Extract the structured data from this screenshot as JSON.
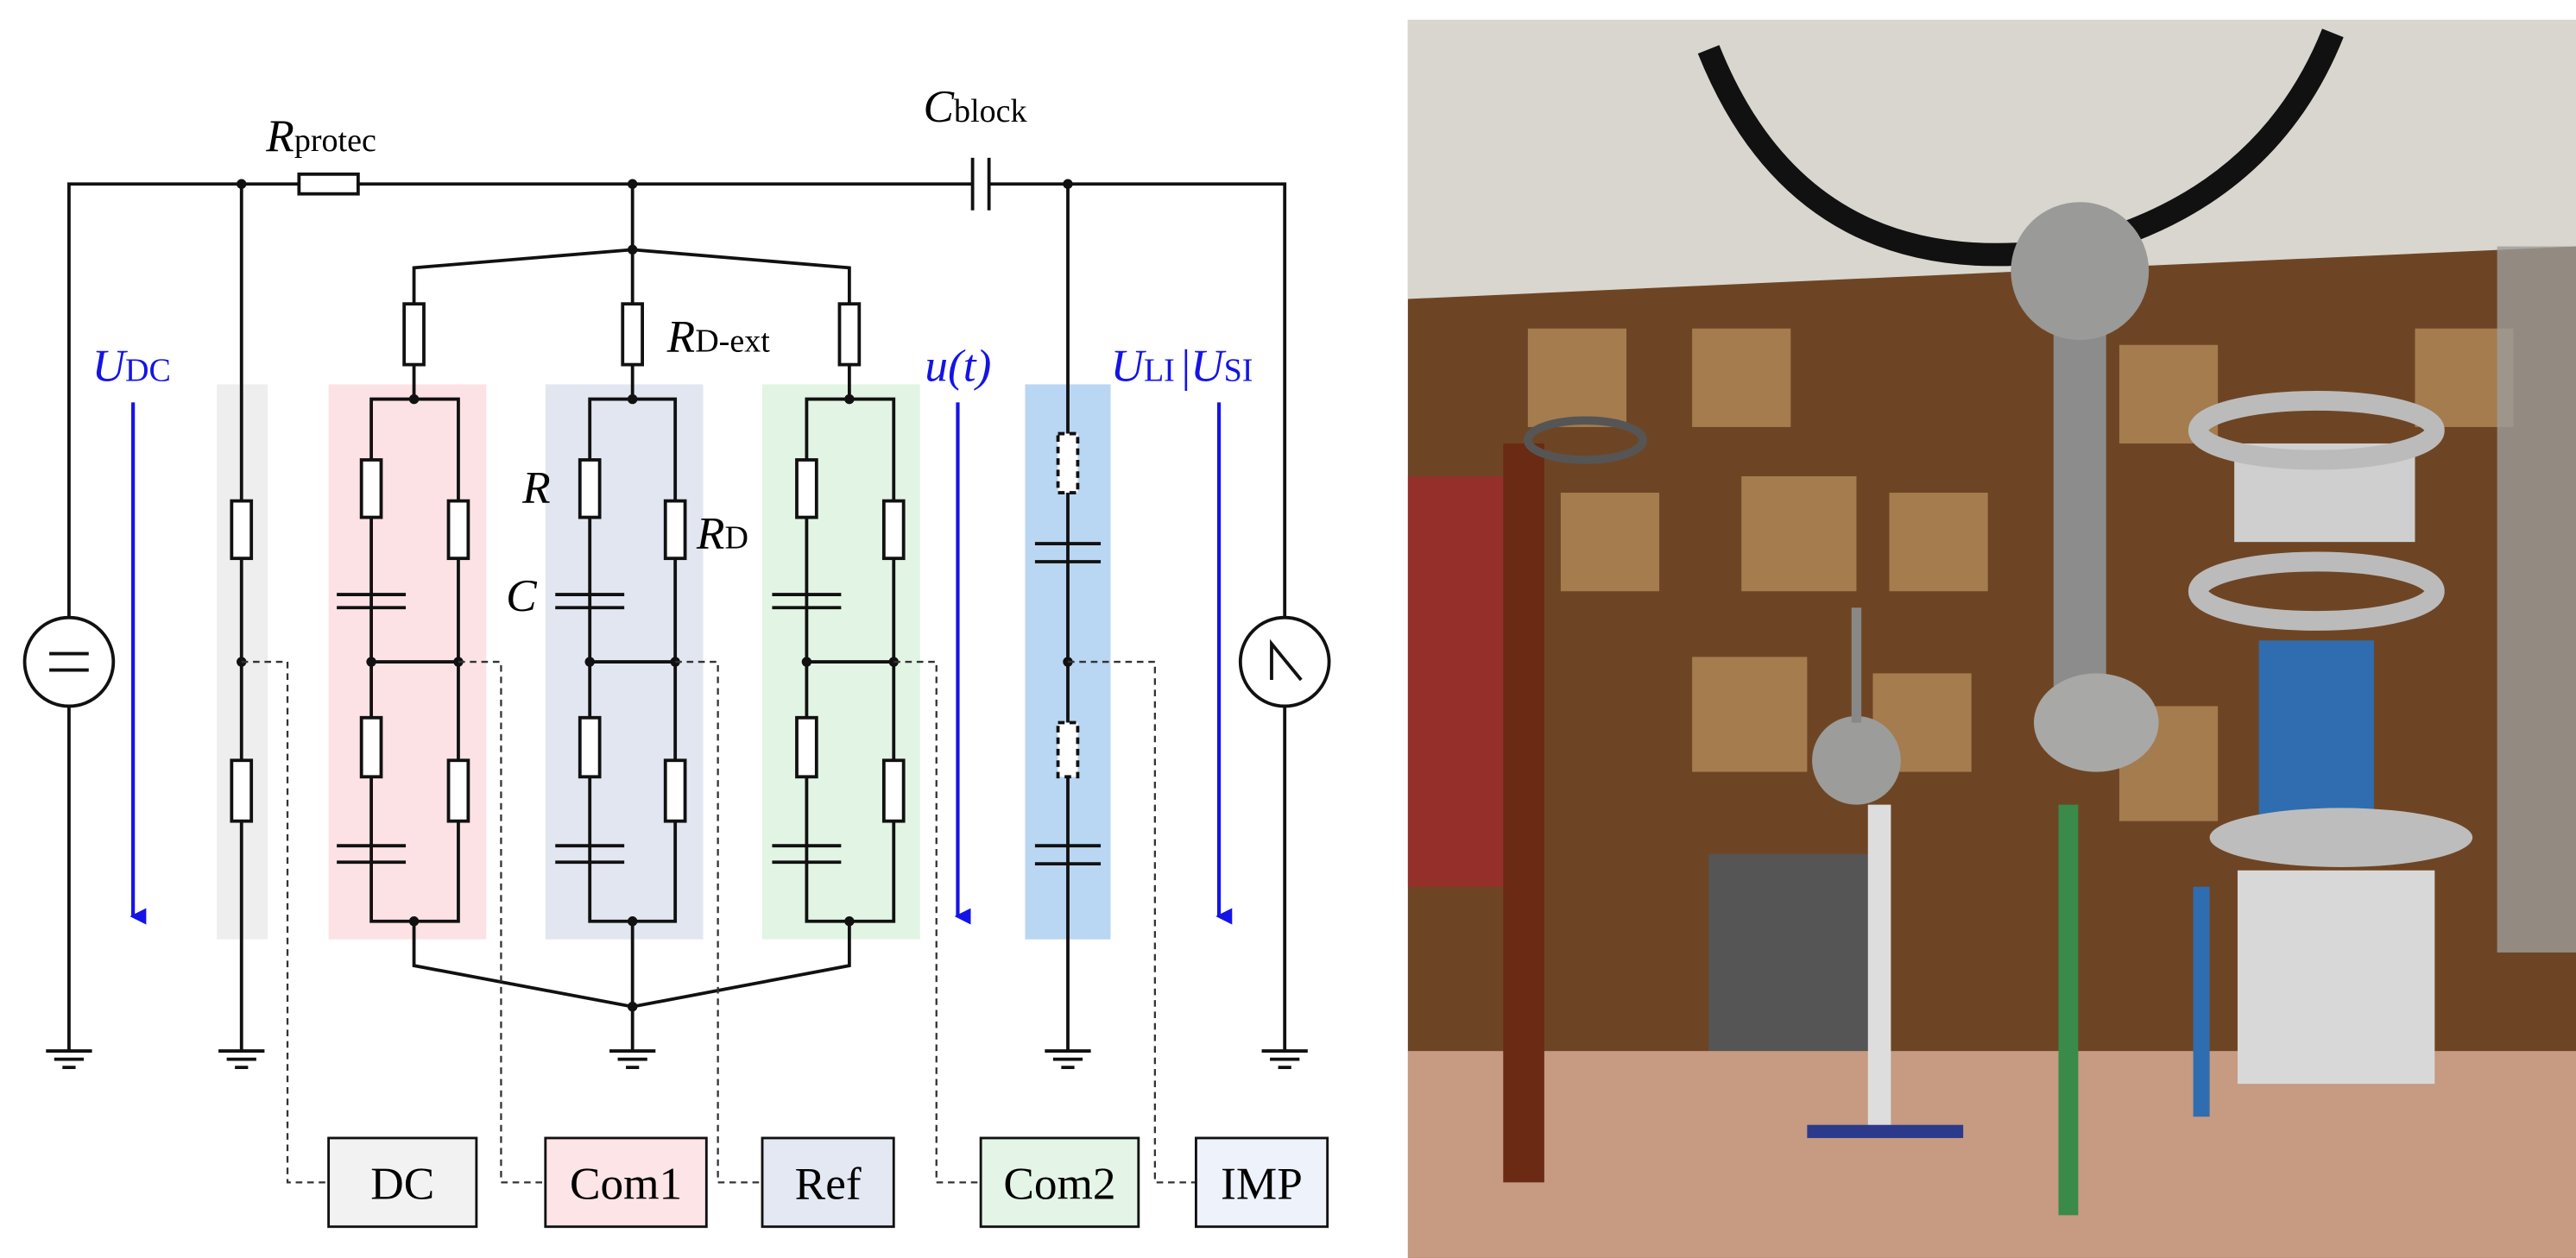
{
  "labels": {
    "r_protec": {
      "symbol": "R",
      "subscript": "protec"
    },
    "c_block": {
      "symbol": "C",
      "subscript": "block"
    },
    "u_dc": {
      "symbol": "U",
      "subscript": "DC"
    },
    "r_d_ext": {
      "symbol": "R",
      "subscript": "D-ext"
    },
    "u_t": "u(t)",
    "u_li_si": {
      "symbol": "U",
      "subscript": "LI",
      "separator": "|",
      "symbol2": "U",
      "subscript2": "SI"
    },
    "r": "R",
    "r_d": {
      "symbol": "R",
      "subscript": "D"
    },
    "c": "C"
  },
  "boxes": [
    "DC",
    "Com1",
    "Ref",
    "Com2",
    "IMP"
  ]
}
